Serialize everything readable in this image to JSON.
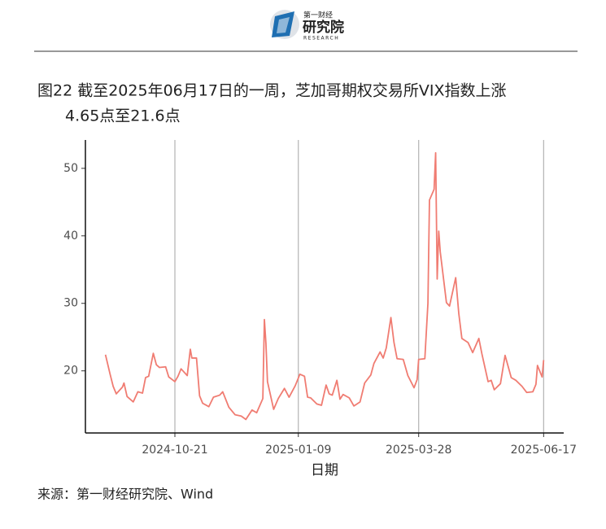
{
  "header": {
    "brand_top": "第一财经",
    "brand_main": "研究院",
    "brand_sub": "RESEARCH"
  },
  "chart_data": {
    "type": "line",
    "title": [
      "图22  截至2025年06月17日的一周，芝加哥期权交易所VIX指数上涨",
      "4.65点至21.6点"
    ],
    "xlabel": "日期",
    "source": "来源：第一财经研究院、Wind",
    "color": "#f07c72",
    "xlim": [
      "2024-08-24",
      "2025-06-30"
    ],
    "xticks": [
      "2024-10-21",
      "2025-01-09",
      "2025-03-28",
      "2025-06-17"
    ],
    "ylim": [
      10.8,
      54.2
    ],
    "yticks": [
      20,
      30,
      40,
      50
    ],
    "grid": "x",
    "x": [
      "2024-09-06",
      "2024-09-09",
      "2024-09-11",
      "2024-09-13",
      "2024-09-17",
      "2024-09-18",
      "2024-09-20",
      "2024-09-24",
      "2024-09-27",
      "2024-09-30",
      "2024-10-02",
      "2024-10-04",
      "2024-10-07",
      "2024-10-09",
      "2024-10-11",
      "2024-10-15",
      "2024-10-17",
      "2024-10-21",
      "2024-10-23",
      "2024-10-25",
      "2024-10-29",
      "2024-10-31",
      "2024-11-01",
      "2024-11-04",
      "2024-11-06",
      "2024-11-08",
      "2024-11-12",
      "2024-11-15",
      "2024-11-19",
      "2024-11-21",
      "2024-11-25",
      "2024-11-29",
      "2024-12-03",
      "2024-12-06",
      "2024-12-10",
      "2024-12-13",
      "2024-12-17",
      "2024-12-18",
      "2024-12-19",
      "2024-12-20",
      "2024-12-24",
      "2024-12-27",
      "2024-12-31",
      "2025-01-03",
      "2025-01-07",
      "2025-01-10",
      "2025-01-13",
      "2025-01-15",
      "2025-01-17",
      "2025-01-21",
      "2025-01-24",
      "2025-01-27",
      "2025-01-29",
      "2025-01-31",
      "2025-02-03",
      "2025-02-05",
      "2025-02-07",
      "2025-02-11",
      "2025-02-14",
      "2025-02-18",
      "2025-02-21",
      "2025-02-25",
      "2025-02-27",
      "2025-03-03",
      "2025-03-05",
      "2025-03-07",
      "2025-03-10",
      "2025-03-12",
      "2025-03-14",
      "2025-03-18",
      "2025-03-21",
      "2025-03-25",
      "2025-03-27",
      "2025-03-28",
      "2025-04-01",
      "2025-04-03",
      "2025-04-04",
      "2025-04-07",
      "2025-04-08",
      "2025-04-09",
      "2025-04-10",
      "2025-04-11",
      "2025-04-15",
      "2025-04-17",
      "2025-04-21",
      "2025-04-23",
      "2025-04-25",
      "2025-04-29",
      "2025-05-02",
      "2025-05-06",
      "2025-05-08",
      "2025-05-12",
      "2025-05-14",
      "2025-05-16",
      "2025-05-20",
      "2025-05-23",
      "2025-05-27",
      "2025-05-30",
      "2025-06-03",
      "2025-06-06",
      "2025-06-10",
      "2025-06-12",
      "2025-06-13",
      "2025-06-16",
      "2025-06-17"
    ],
    "values": [
      22.4,
      19.5,
      17.7,
      16.6,
      17.6,
      18.2,
      16.2,
      15.4,
      16.9,
      16.7,
      19.0,
      19.2,
      22.6,
      20.9,
      20.5,
      20.6,
      19.1,
      18.4,
      19.2,
      20.3,
      19.3,
      23.2,
      21.9,
      21.9,
      16.3,
      15.2,
      14.7,
      16.1,
      16.4,
      16.9,
      14.6,
      13.5,
      13.3,
      12.8,
      14.2,
      13.8,
      15.9,
      27.6,
      24.1,
      18.4,
      14.3,
      15.9,
      17.4,
      16.1,
      17.8,
      19.5,
      19.2,
      16.1,
      16.0,
      15.1,
      14.9,
      17.9,
      16.6,
      16.4,
      18.6,
      15.8,
      16.5,
      16.0,
      14.8,
      15.4,
      18.2,
      19.4,
      21.1,
      22.8,
      21.9,
      23.4,
      27.9,
      24.2,
      21.8,
      21.7,
      19.3,
      17.5,
      18.7,
      21.7,
      21.8,
      30.0,
      45.3,
      46.9,
      52.3,
      33.6,
      40.7,
      37.6,
      30.1,
      29.6,
      33.8,
      28.5,
      24.8,
      24.2,
      22.7,
      24.8,
      22.5,
      18.4,
      18.6,
      17.2,
      18.1,
      22.3,
      19.0,
      18.6,
      17.7,
      16.8,
      16.9,
      18.0,
      20.8,
      19.1,
      21.6
    ]
  }
}
